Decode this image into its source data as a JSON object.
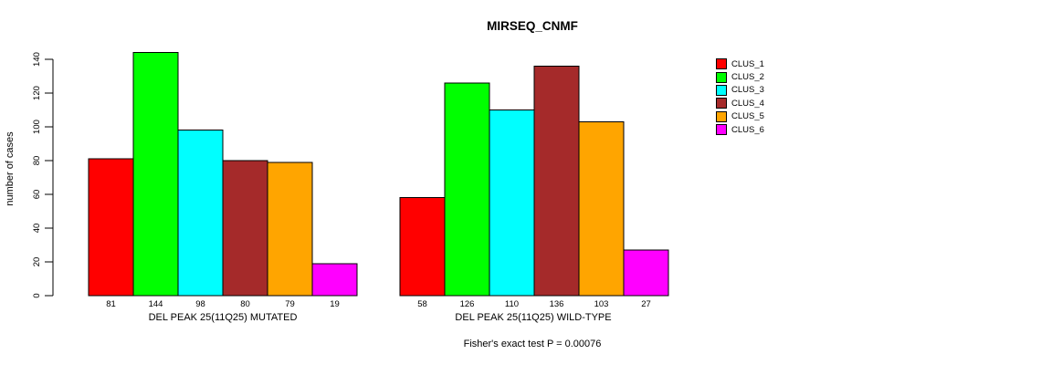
{
  "chart_data": {
    "type": "bar",
    "title": "MIRSEQ_CNMF",
    "ylabel": "number of cases",
    "xlabel": "",
    "ylim": [
      0,
      140
    ],
    "yticks": [
      0,
      20,
      40,
      60,
      80,
      100,
      120,
      140
    ],
    "grid": false,
    "legend_position": "right",
    "bar_value_labels": true,
    "categories": [
      "DEL PEAK 25(11Q25) MUTATED",
      "DEL PEAK 25(11Q25) WILD-TYPE"
    ],
    "series": [
      {
        "name": "CLUS_1",
        "color": "#FF0000",
        "values": [
          81,
          58
        ]
      },
      {
        "name": "CLUS_2",
        "color": "#00FF00",
        "values": [
          144,
          126
        ]
      },
      {
        "name": "CLUS_3",
        "color": "#00FFFF",
        "values": [
          98,
          110
        ]
      },
      {
        "name": "CLUS_4",
        "color": "#A52A2A",
        "values": [
          80,
          136
        ]
      },
      {
        "name": "CLUS_5",
        "color": "#FFA500",
        "values": [
          79,
          103
        ]
      },
      {
        "name": "CLUS_6",
        "color": "#FF00FF",
        "values": [
          19,
          27
        ]
      }
    ],
    "annotation": "Fisher's exact test P = 0.00076"
  }
}
